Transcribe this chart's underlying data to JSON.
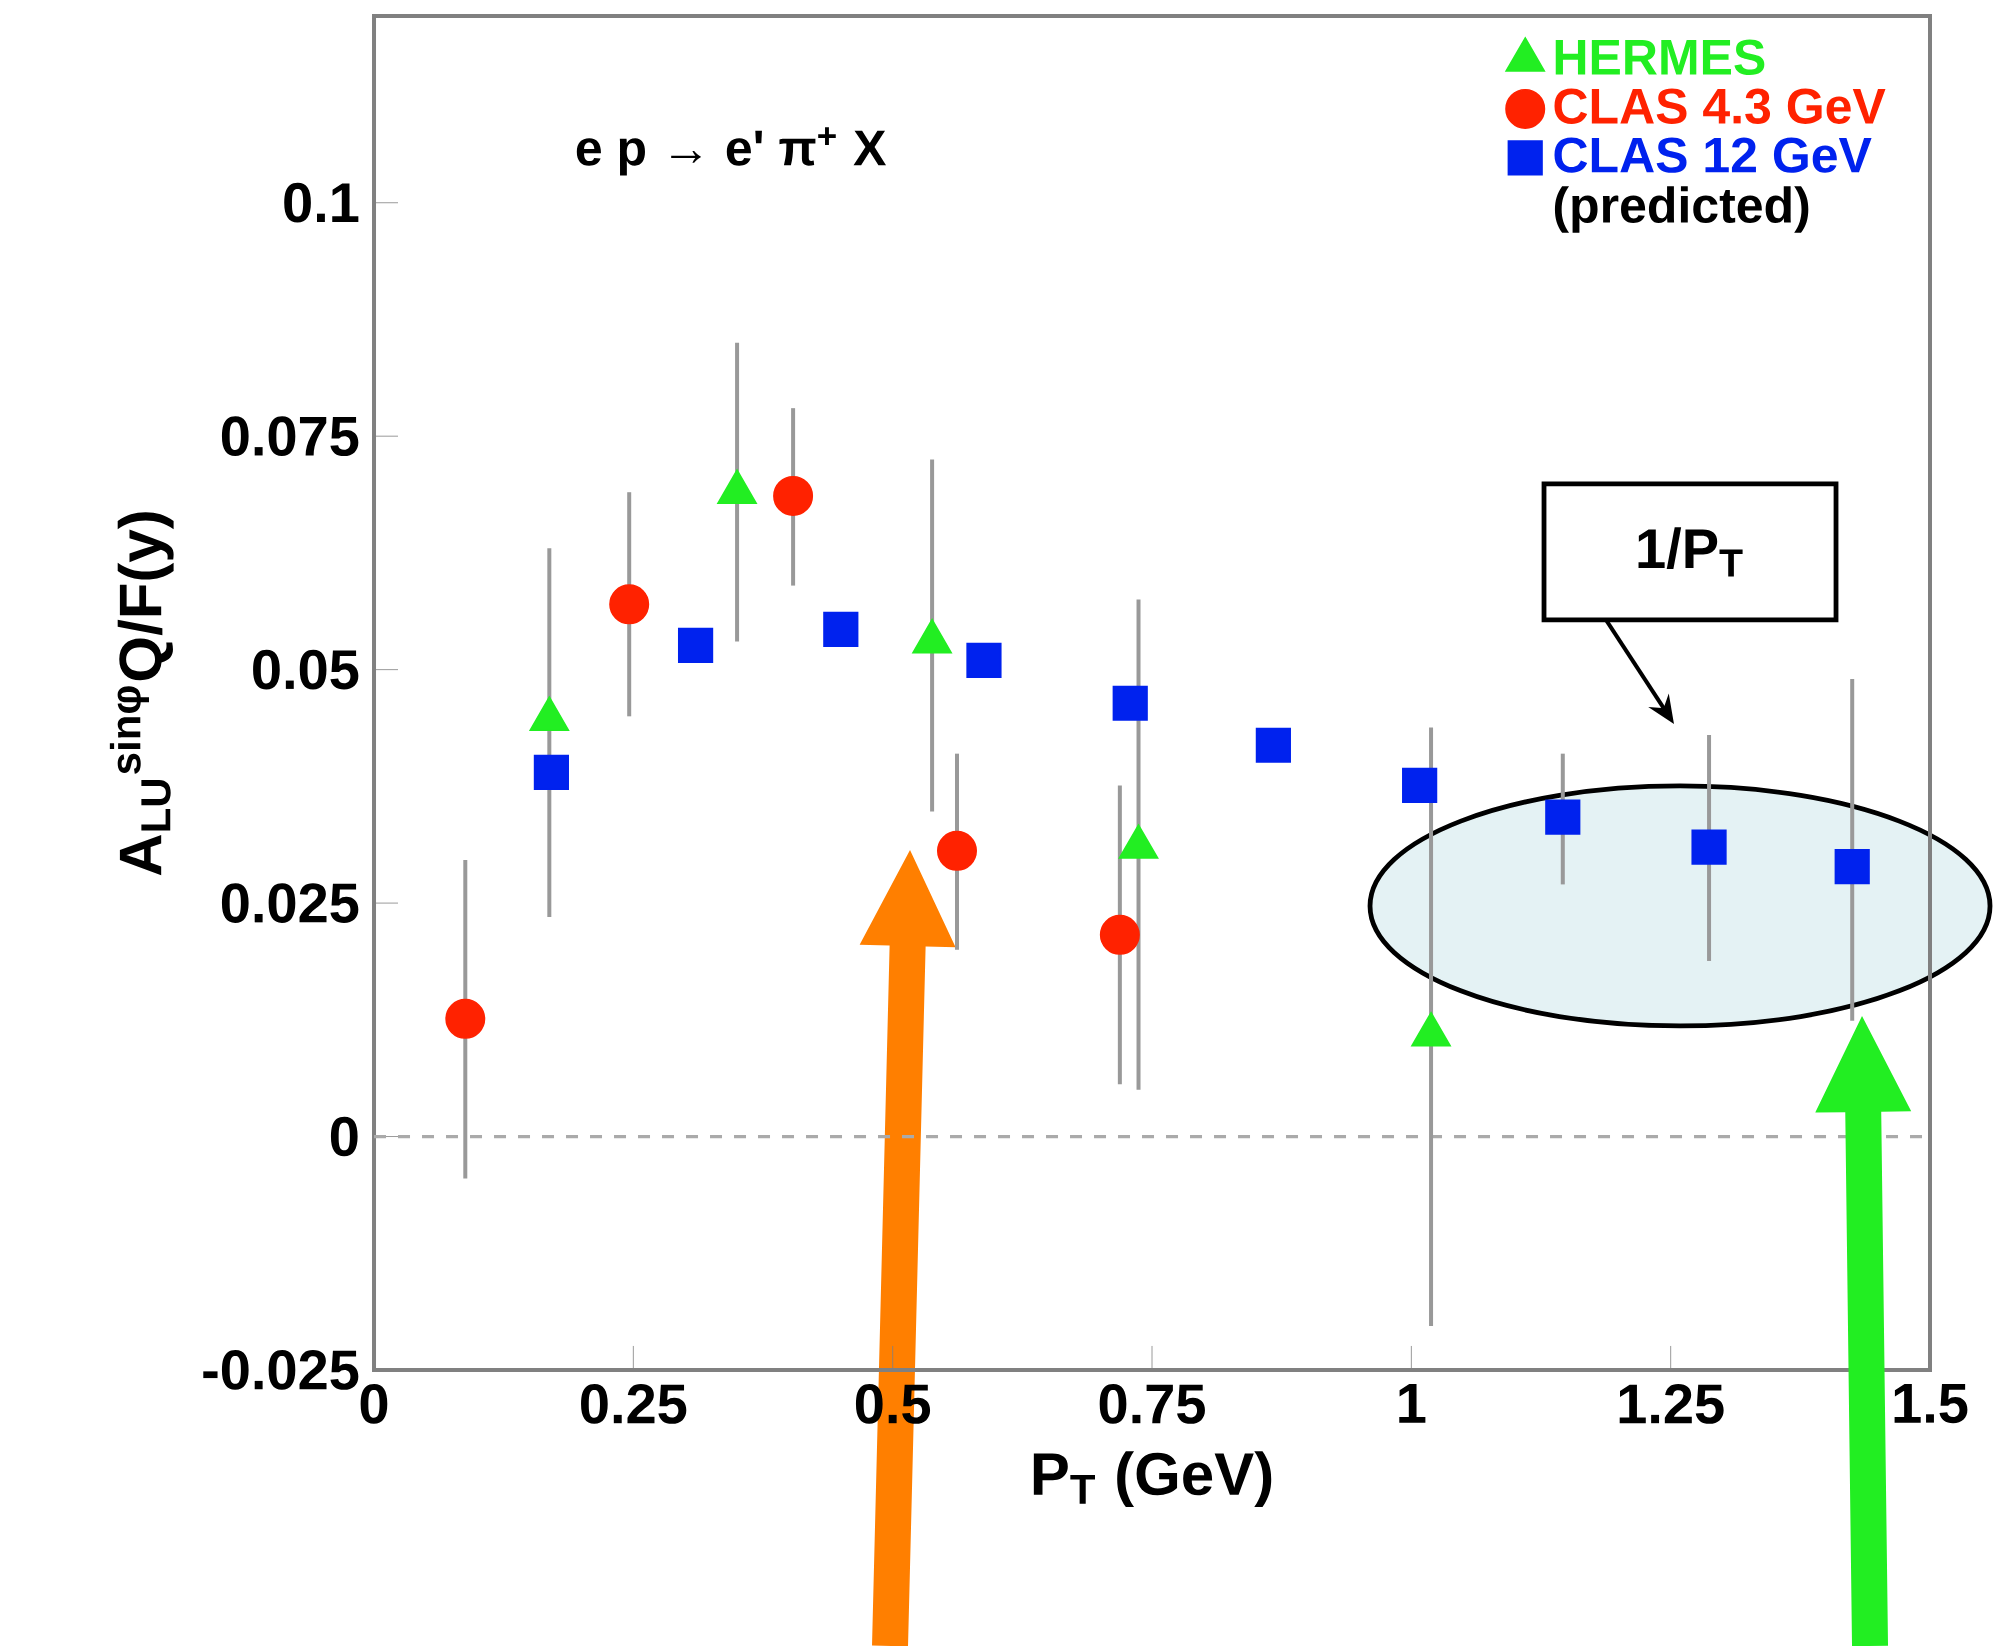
{
  "chart_data": {
    "type": "scatter",
    "xlabel": "P$_{T}$ (GeV)",
    "ylabel": "A$_{LU}$$^{sinφ}$Q/F(y)",
    "xlim": [
      0,
      1.5
    ],
    "ylim": [
      -0.025,
      0.12
    ],
    "xticks": [
      0,
      0.25,
      0.5,
      0.75,
      1,
      1.25,
      1.5
    ],
    "yticks": [
      -0.025,
      0,
      0.025,
      0.05,
      0.075,
      0.1
    ],
    "legend": "top right",
    "grid": false,
    "ref_lines": [
      {
        "axis": "y",
        "value": 0,
        "color": "#aaaaaa",
        "line_style": "dashed"
      }
    ],
    "annotations": [
      "e p → e' π$^{+}$ X",
      "1/P$_{T}$",
      "(predicted)"
    ],
    "series": [
      {
        "name": "HERMES",
        "color": "#22ee22",
        "marker": "triangle",
        "x": [
          0.169,
          0.35,
          0.538,
          0.737,
          1.019
        ],
        "values": [
          0.0447,
          0.069,
          0.053,
          0.031,
          0.0109
        ],
        "errors": [
          [
            0.0235,
            0.063
          ],
          [
            0.053,
            0.085
          ],
          [
            0.0348,
            0.0725
          ],
          [
            0.005,
            0.0575
          ],
          [
            -0.0203,
            0.0438
          ]
        ]
      },
      {
        "name": "CLAS 4.3 GeV",
        "color": "#ff2200",
        "marker": "circle",
        "x": [
          0.088,
          0.246,
          0.404,
          0.562,
          0.719
        ],
        "values": [
          0.0126,
          0.057,
          0.0686,
          0.0306,
          0.0216
        ],
        "errors": [
          [
            -0.0045,
            0.0296
          ],
          [
            0.045,
            0.069
          ],
          [
            0.059,
            0.078
          ],
          [
            0.02,
            0.041
          ],
          [
            0.0056,
            0.0376
          ]
        ]
      },
      {
        "name": "CLAS 12 GeV",
        "color": "#0022ee",
        "marker": "square",
        "x": [
          0.171,
          0.31,
          0.45,
          0.588,
          0.729,
          0.867,
          1.008,
          1.146,
          1.287,
          1.425
        ],
        "values": [
          0.039,
          0.0526,
          0.0543,
          0.051,
          0.0464,
          0.0419,
          0.0376,
          0.0342,
          0.031,
          0.0289
        ],
        "errors": [
          null,
          null,
          null,
          null,
          null,
          null,
          null,
          [
            0.027,
            0.041
          ],
          [
            0.0188,
            0.043
          ],
          [
            0.0124,
            0.049
          ]
        ]
      }
    ]
  }
}
